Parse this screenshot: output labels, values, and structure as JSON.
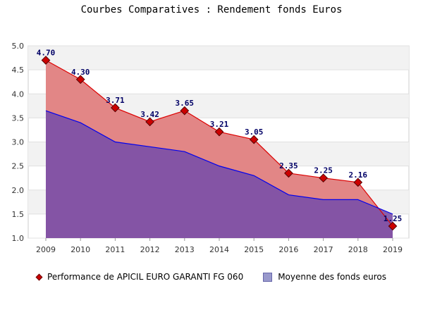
{
  "chart_data": {
    "type": "area",
    "title": "Courbes Comparatives : Rendement fonds Euros",
    "categories": [
      "2009",
      "2010",
      "2011",
      "2012",
      "2013",
      "2014",
      "2015",
      "2016",
      "2017",
      "2018",
      "2019"
    ],
    "yticks": [
      "1.0",
      "1.5",
      "2.0",
      "2.5",
      "3.0",
      "3.5",
      "4.0",
      "4.5",
      "5.0"
    ],
    "ylim": [
      1.0,
      5.0
    ],
    "grid": "horizontal-bands",
    "legend_position": "bottom",
    "series": [
      {
        "name": "Performance de APICIL EURO GARANTI FG 060",
        "values": [
          4.7,
          4.3,
          3.71,
          3.42,
          3.65,
          3.21,
          3.05,
          2.35,
          2.25,
          2.16,
          1.25
        ],
        "labels": [
          "4.70",
          "4.30",
          "3.71",
          "3.42",
          "3.65",
          "3.21",
          "3.05",
          "2.35",
          "2.25",
          "2.16",
          "1.25"
        ],
        "color": "#e08080",
        "line_color": "#dd0000"
      },
      {
        "name": "Moyenne des fonds euros",
        "values": [
          3.65,
          3.4,
          3.0,
          2.9,
          2.8,
          2.5,
          2.3,
          1.9,
          1.8,
          1.8,
          1.5
        ],
        "color": "#7a4fa8",
        "line_color": "#0000ee"
      }
    ]
  }
}
